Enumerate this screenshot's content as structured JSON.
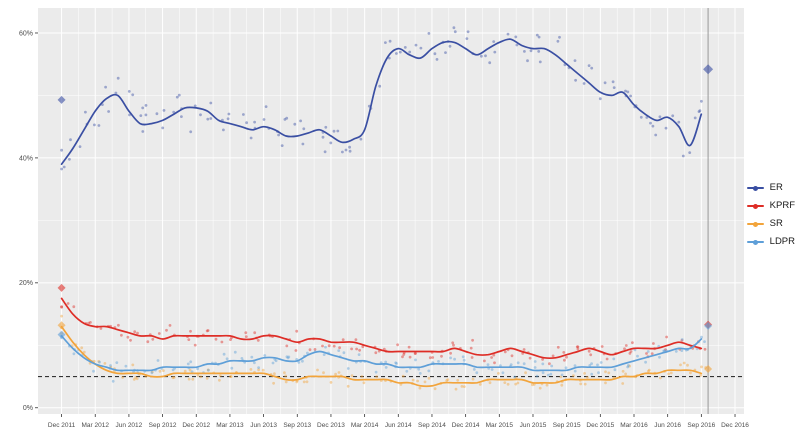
{
  "chart_data": {
    "type": "scatter",
    "subtype": "polling scatter with smoothed trend lines (ggplot style)",
    "title": "",
    "xlabel": "",
    "ylabel": "",
    "x_unit": "months since Dec 2011",
    "xlim": [
      -2.1,
      60.8
    ],
    "ylim": [
      -1,
      64
    ],
    "grid": true,
    "panel_background": "#EBEBEB",
    "grid_color": "#FFFFFF",
    "axis_text_color": "#4D4D4D",
    "x_ticks": [
      {
        "month": 0,
        "label": "Dec 2011"
      },
      {
        "month": 3,
        "label": "Mar 2012"
      },
      {
        "month": 6,
        "label": "Jun 2012"
      },
      {
        "month": 9,
        "label": "Sep 2012"
      },
      {
        "month": 12,
        "label": "Dec 2012"
      },
      {
        "month": 15,
        "label": "Mar 2013"
      },
      {
        "month": 18,
        "label": "Jun 2013"
      },
      {
        "month": 21,
        "label": "Sep 2013"
      },
      {
        "month": 24,
        "label": "Dec 2013"
      },
      {
        "month": 27,
        "label": "Mar 2014"
      },
      {
        "month": 30,
        "label": "Jun 2014"
      },
      {
        "month": 33,
        "label": "Sep 2014"
      },
      {
        "month": 36,
        "label": "Dec 2014"
      },
      {
        "month": 39,
        "label": "Mar 2015"
      },
      {
        "month": 42,
        "label": "Jun 2015"
      },
      {
        "month": 45,
        "label": "Sep 2015"
      },
      {
        "month": 48,
        "label": "Dec 2015"
      },
      {
        "month": 51,
        "label": "Mar 2016"
      },
      {
        "month": 54,
        "label": "Jun 2016"
      },
      {
        "month": 57,
        "label": "Sep 2016"
      },
      {
        "month": 60,
        "label": "Dec 2016"
      }
    ],
    "y_ticks": [
      {
        "value": 0,
        "label": "0%"
      },
      {
        "value": 20,
        "label": "20%"
      },
      {
        "value": 40,
        "label": "40%"
      },
      {
        "value": 60,
        "label": "60%"
      }
    ],
    "y_minor": [
      10,
      30,
      50
    ],
    "threshold_line": {
      "value": 5,
      "style": "dashed",
      "color": "#333333"
    },
    "election_vline": {
      "month": 57.6,
      "color": "#999999"
    },
    "scatter_seed": 7,
    "scatter_points_per_month": 2.5,
    "series": [
      {
        "name": "ER",
        "color": "#3A4FA3",
        "scatter_amplitude": 3.2,
        "marker_2011": 49.3,
        "marker_2016": 54.2,
        "smooth_monthly": [
          39,
          41.5,
          44.5,
          47.5,
          49.5,
          50,
          47.5,
          45.5,
          45.5,
          46,
          47,
          48,
          48,
          47.5,
          46,
          45.5,
          45,
          44.5,
          45,
          44.5,
          43.5,
          43.5,
          44,
          44.5,
          43.5,
          42.5,
          43,
          44.5,
          51.5,
          56,
          57.5,
          56.5,
          56,
          57.5,
          58.5,
          58.5,
          57.5,
          56.5,
          57.5,
          58.5,
          59,
          58,
          57.5,
          57.5,
          56.5,
          55,
          53.5,
          52,
          50.5,
          50,
          50.5,
          48.5,
          47,
          46,
          46.5,
          45,
          42,
          47
        ]
      },
      {
        "name": "KPRF",
        "color": "#DE2D26",
        "scatter_amplitude": 1.6,
        "marker_2011": 19.2,
        "marker_2016": 13.3,
        "smooth_monthly": [
          17.5,
          15,
          13.5,
          13,
          13,
          12.5,
          12,
          11.5,
          11.5,
          11,
          11.5,
          11.5,
          11.5,
          11.5,
          11.5,
          11.5,
          11,
          11,
          11.5,
          11.5,
          11,
          10.5,
          11,
          11,
          10.5,
          10.5,
          10.5,
          10,
          9.5,
          9,
          9,
          9,
          9,
          9,
          9,
          9.5,
          9,
          8.5,
          8.5,
          9,
          9.5,
          9,
          8.5,
          8,
          8,
          8.5,
          9,
          9.5,
          9,
          8.5,
          9,
          9.5,
          9.5,
          9.5,
          10,
          10.5,
          10,
          9.5
        ]
      },
      {
        "name": "SR",
        "color": "#F2A43B",
        "scatter_amplitude": 1.3,
        "marker_2011": 13.2,
        "marker_2016": 6.2,
        "smooth_monthly": [
          13,
          10.5,
          8.5,
          7,
          6,
          5.5,
          5.5,
          5.5,
          5,
          5,
          5.5,
          5.5,
          5.5,
          5.5,
          5.5,
          5.5,
          5.5,
          5.5,
          5.5,
          5,
          4.5,
          4.5,
          5,
          5,
          5,
          5,
          4.5,
          4.5,
          4.5,
          4.5,
          4,
          4,
          3.5,
          3.5,
          4,
          4,
          4,
          4,
          4.5,
          4.5,
          4.5,
          4.5,
          4,
          4,
          4,
          4.5,
          4.5,
          4.5,
          4.5,
          4.5,
          5,
          5,
          5.5,
          5.5,
          6,
          6,
          6,
          5.5
        ]
      },
      {
        "name": "LDPR",
        "color": "#5E9FD8",
        "scatter_amplitude": 1.4,
        "marker_2011": 11.7,
        "marker_2016": 13.1,
        "smooth_monthly": [
          11.5,
          9.5,
          8,
          7,
          6.5,
          6,
          6,
          6,
          6,
          6.5,
          6.5,
          6.5,
          6.5,
          7,
          7,
          7.5,
          7.5,
          7.5,
          8,
          8,
          7.5,
          7.5,
          8.5,
          9,
          8.5,
          8,
          7.5,
          7.5,
          7,
          7,
          6.5,
          6.5,
          6.5,
          7,
          7,
          7,
          7,
          6.5,
          6.5,
          6.5,
          6.5,
          6.5,
          6,
          6,
          6,
          6,
          6.5,
          6.5,
          6.5,
          6.5,
          7,
          7.5,
          8,
          8.5,
          9,
          9.5,
          9.5,
          11
        ]
      }
    ],
    "legend": {
      "position": "right",
      "entries": [
        "ER",
        "KPRF",
        "SR",
        "LDPR"
      ]
    }
  }
}
